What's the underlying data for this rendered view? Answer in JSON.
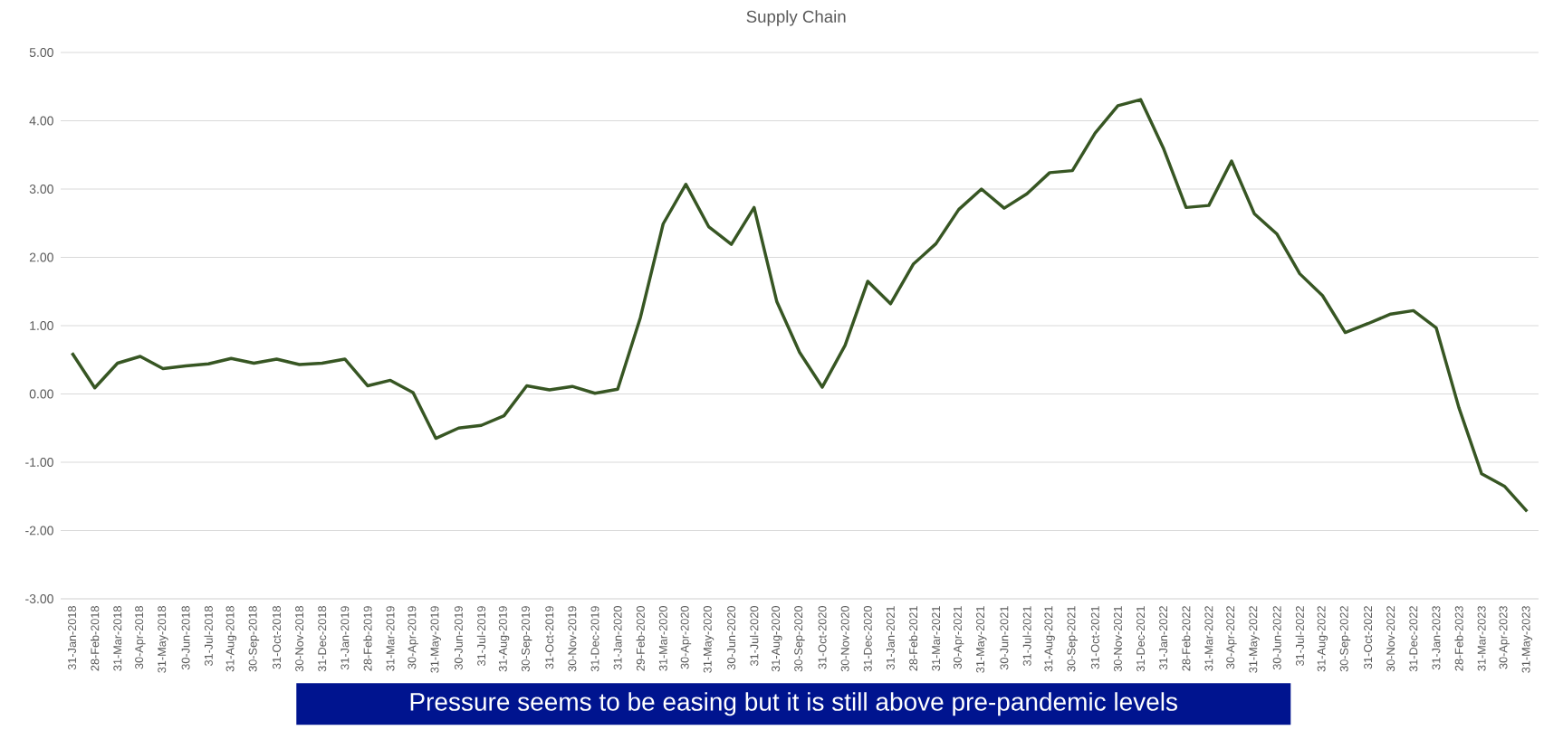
{
  "chart_data": {
    "type": "line",
    "title": "Supply Chain",
    "categories": [
      "31-Jan-2018",
      "28-Feb-2018",
      "31-Mar-2018",
      "30-Apr-2018",
      "31-May-2018",
      "30-Jun-2018",
      "31-Jul-2018",
      "31-Aug-2018",
      "30-Sep-2018",
      "31-Oct-2018",
      "30-Nov-2018",
      "31-Dec-2018",
      "31-Jan-2019",
      "28-Feb-2019",
      "31-Mar-2019",
      "30-Apr-2019",
      "31-May-2019",
      "30-Jun-2019",
      "31-Jul-2019",
      "31-Aug-2019",
      "30-Sep-2019",
      "31-Oct-2019",
      "30-Nov-2019",
      "31-Dec-2019",
      "31-Jan-2020",
      "29-Feb-2020",
      "31-Mar-2020",
      "30-Apr-2020",
      "31-May-2020",
      "30-Jun-2020",
      "31-Jul-2020",
      "31-Aug-2020",
      "30-Sep-2020",
      "31-Oct-2020",
      "30-Nov-2020",
      "31-Dec-2020",
      "31-Jan-2021",
      "28-Feb-2021",
      "31-Mar-2021",
      "30-Apr-2021",
      "31-May-2021",
      "30-Jun-2021",
      "31-Jul-2021",
      "31-Aug-2021",
      "30-Sep-2021",
      "31-Oct-2021",
      "30-Nov-2021",
      "31-Dec-2021",
      "31-Jan-2022",
      "28-Feb-2022",
      "31-Mar-2022",
      "30-Apr-2022",
      "31-May-2022",
      "30-Jun-2022",
      "31-Jul-2022",
      "31-Aug-2022",
      "30-Sep-2022",
      "31-Oct-2022",
      "30-Nov-2022",
      "31-Dec-2022",
      "31-Jan-2023",
      "28-Feb-2023",
      "31-Mar-2023",
      "30-Apr-2023",
      "31-May-2023"
    ],
    "series": [
      {
        "color": "#375623",
        "values": [
          0.6,
          0.09,
          0.45,
          0.55,
          0.37,
          0.41,
          0.44,
          0.52,
          0.45,
          0.51,
          0.43,
          0.45,
          0.51,
          0.12,
          0.2,
          0.02,
          -0.65,
          -0.5,
          -0.46,
          -0.32,
          0.12,
          0.06,
          0.11,
          0.01,
          0.07,
          1.12,
          2.49,
          3.07,
          2.45,
          2.19,
          2.73,
          1.35,
          0.61,
          0.1,
          0.71,
          1.65,
          1.32,
          1.9,
          2.2,
          2.7,
          3.0,
          2.72,
          2.93,
          3.24,
          3.27,
          3.82,
          4.22,
          4.31,
          3.6,
          2.73,
          2.76,
          3.41,
          2.64,
          2.34,
          1.76,
          1.44,
          0.9,
          1.03,
          1.17,
          1.22,
          0.97,
          -0.2,
          -1.17,
          -1.35,
          -1.72
        ]
      }
    ],
    "ylim": [
      -3,
      5
    ],
    "yticks": [
      {
        "value": -3,
        "label": "-3.00"
      },
      {
        "value": -2,
        "label": "-2.00"
      },
      {
        "value": -1,
        "label": "-1.00"
      },
      {
        "value": 0,
        "label": "0.00"
      },
      {
        "value": 1,
        "label": "1.00"
      },
      {
        "value": 2,
        "label": "2.00"
      },
      {
        "value": 3,
        "label": "3.00"
      },
      {
        "value": 4,
        "label": "4.00"
      },
      {
        "value": 5,
        "label": "5.00"
      }
    ],
    "grid": "y",
    "marker": "none",
    "line_style": "solid",
    "annotations": [
      "Pressure seems to be easing but it is still above pre-pandemic levels"
    ]
  }
}
